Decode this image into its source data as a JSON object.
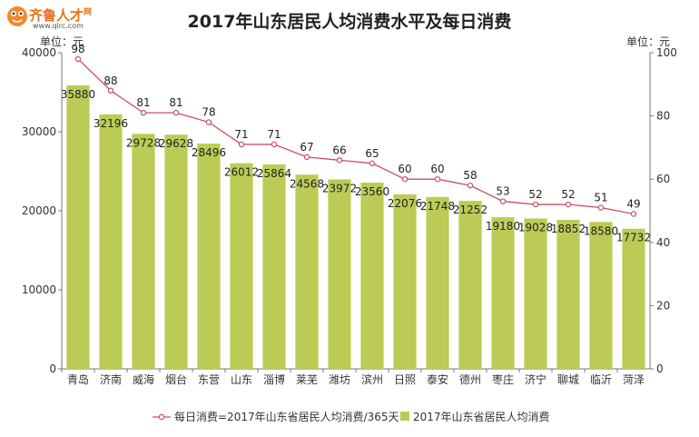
{
  "logo": {
    "brand": "齐鲁人才",
    "suffix": "网",
    "site": "www.qlrc.com"
  },
  "chart_data": {
    "type": "bar",
    "title": "2017年山东居民人均消费水平及每日消费",
    "categories": [
      "青岛",
      "济南",
      "威海",
      "烟台",
      "东营",
      "山东",
      "淄博",
      "莱芜",
      "潍坊",
      "滨州",
      "日照",
      "泰安",
      "德州",
      "枣庄",
      "济宁",
      "聊城",
      "临沂",
      "菏泽"
    ],
    "series": [
      {
        "name": "2017年山东省居民人均消费",
        "type": "bar",
        "axis": "left",
        "color": "#bccb55",
        "values": [
          35880,
          32196,
          29728,
          29628,
          28496,
          26012,
          25864,
          24568,
          23972,
          23560,
          22076,
          21748,
          21252,
          19180,
          19028,
          18852,
          18580,
          17732
        ]
      },
      {
        "name": "每日消费=2017年山东省居民人均消费/365天",
        "type": "line",
        "axis": "right",
        "color": "#c8505c",
        "values": [
          98,
          88,
          81,
          81,
          78,
          71,
          71,
          67,
          66,
          65,
          60,
          60,
          58,
          53,
          52,
          52,
          51,
          49
        ]
      }
    ],
    "y_left": {
      "unit_label": "单位：元",
      "min": 0,
      "max": 40000,
      "ticks": [
        0,
        10000,
        20000,
        30000,
        40000
      ]
    },
    "y_right": {
      "unit_label": "单位：元",
      "min": 0,
      "max": 100,
      "ticks": [
        0,
        20,
        40,
        60,
        80,
        100
      ]
    },
    "legend_position": "bottom",
    "grid": false
  }
}
